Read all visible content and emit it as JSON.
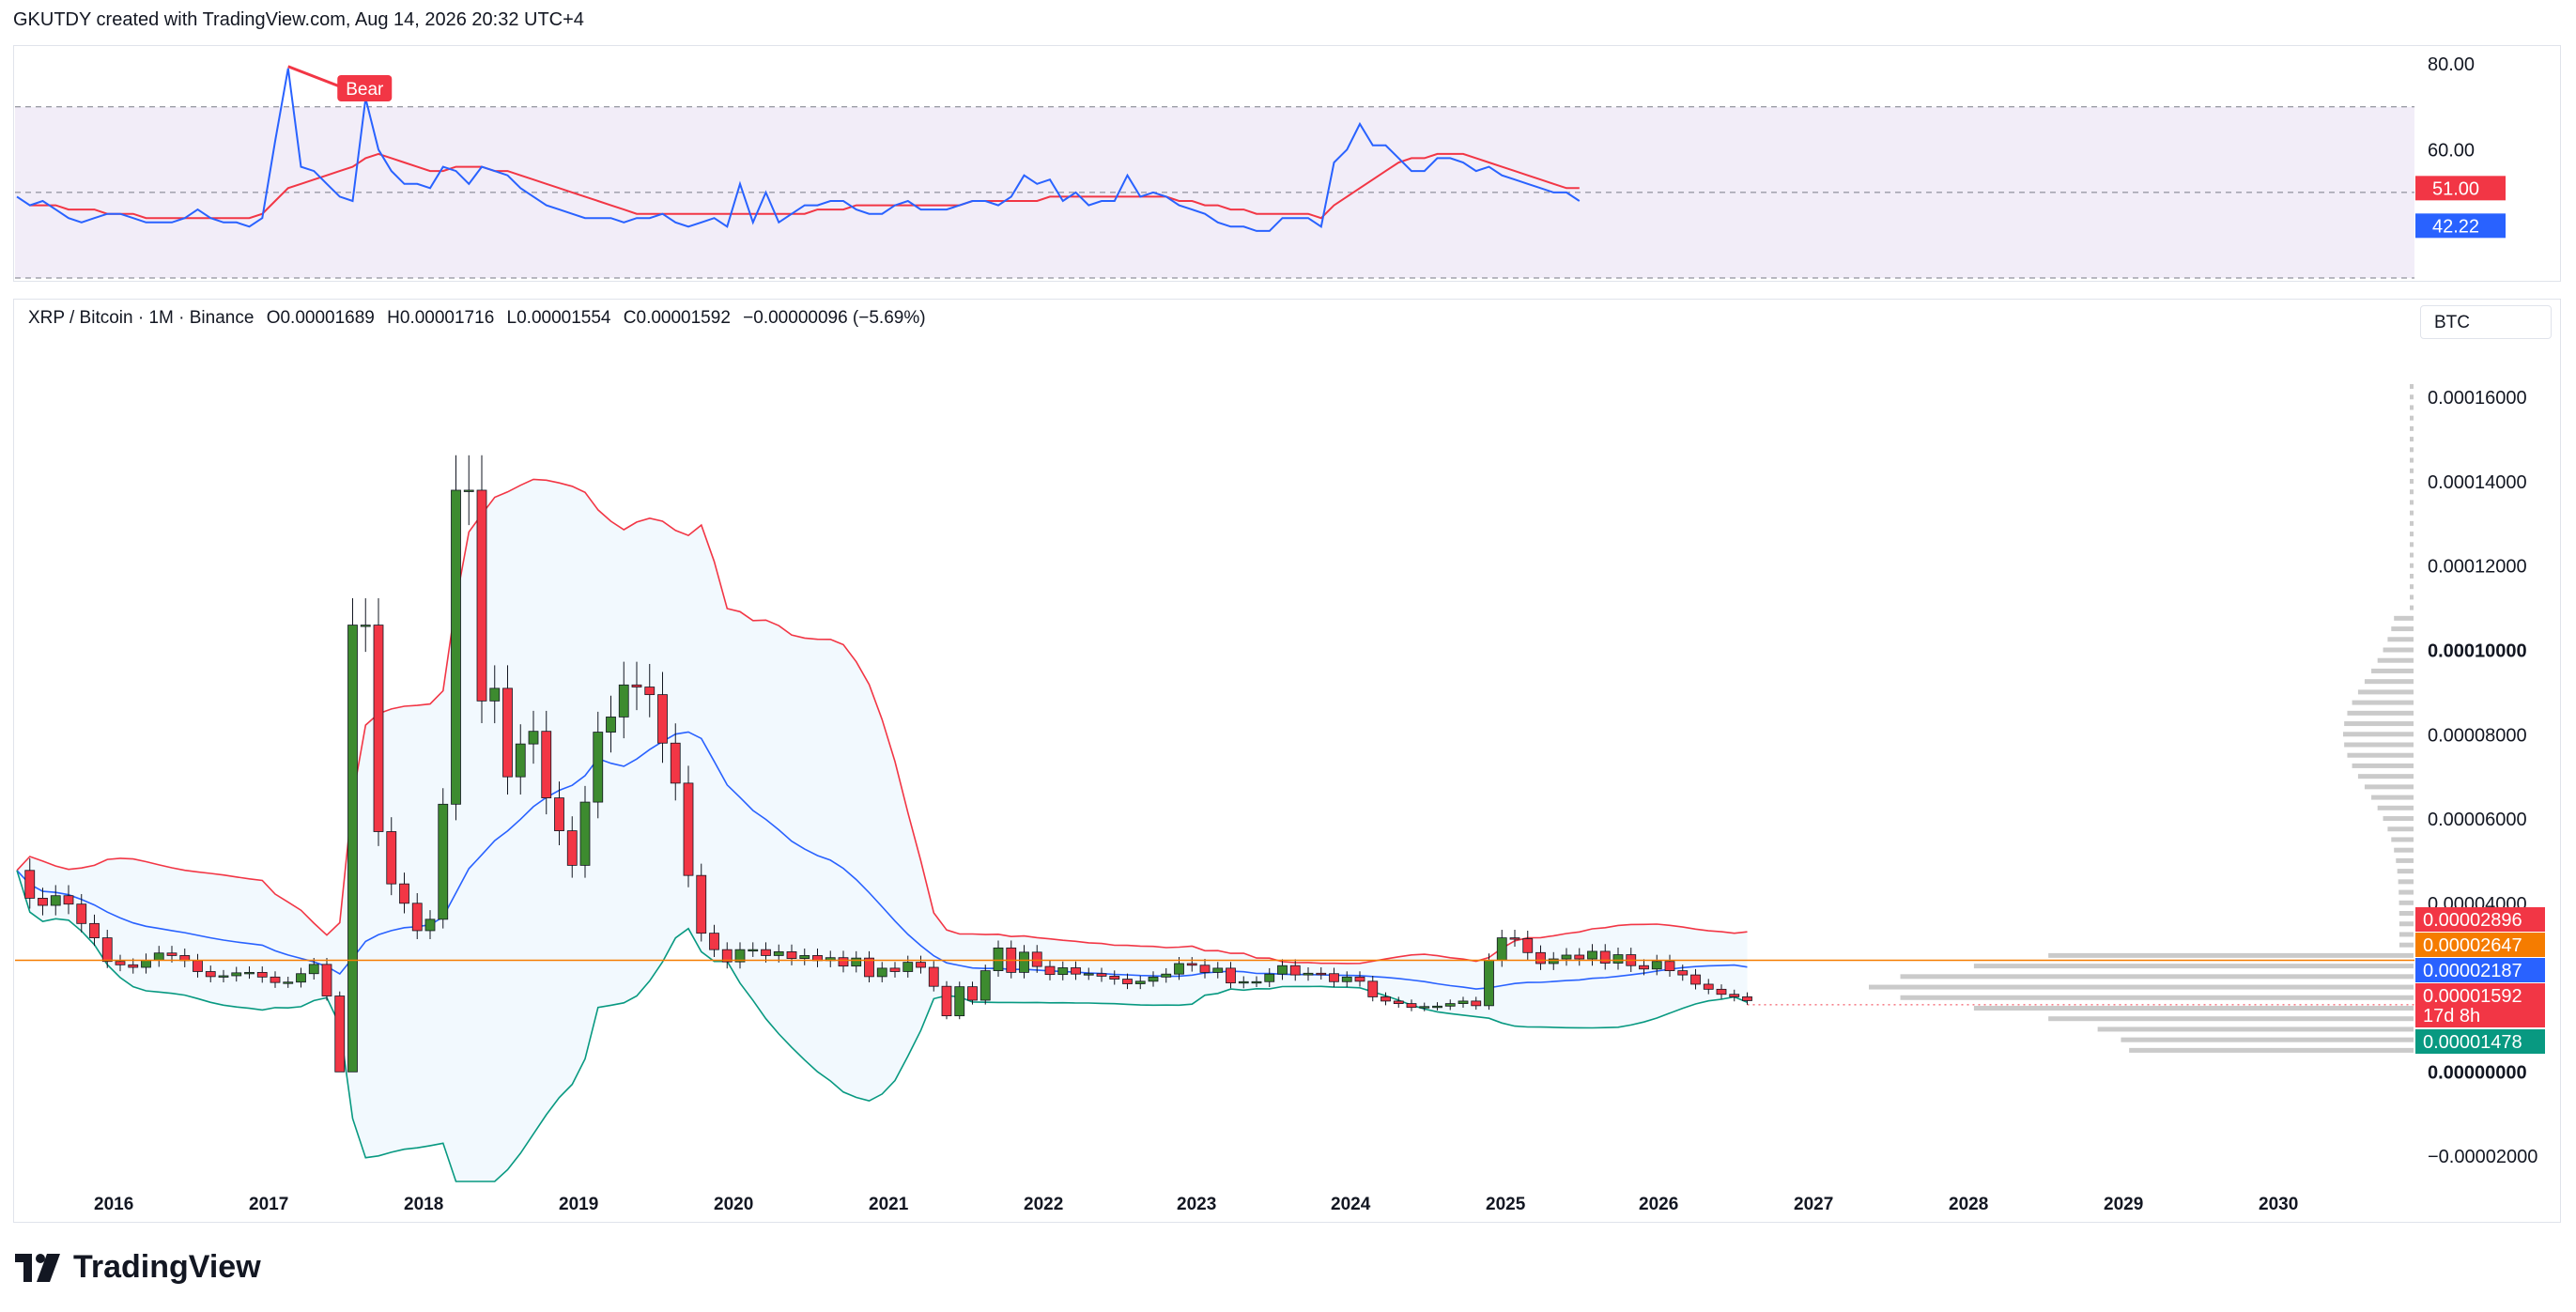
{
  "header": {
    "text": "GKUTDY created with TradingView.com, Aug 14, 2026 20:32 UTC+4"
  },
  "legend": {
    "symbol": "XRP / Bitcoin · 1M · Binance",
    "open": "O0.00001689",
    "high": "H0.00001716",
    "low": "L0.00001554",
    "close": "C0.00001592",
    "change": "−0.00000096 (−5.69%)"
  },
  "unit_label": "BTC",
  "brand": "TradingView",
  "colors": {
    "up": "#3d8b2f",
    "down": "#f23645",
    "basis": "#2962ff",
    "upper": "#f23645",
    "lower": "#089981",
    "rsi": "#2962ff",
    "rsi_ma": "#f23645",
    "highlight": "#f57c00"
  },
  "chart_data": [
    {
      "type": "line",
      "panel": "RSI",
      "title": "",
      "ylim": [
        30,
        84
      ],
      "yticks": [
        "80.00",
        "60.00"
      ],
      "overbought": 70,
      "oversold": 30,
      "mid": 50,
      "x_start": "2015-06",
      "interval": "1M",
      "series": [
        {
          "name": "",
          "color": "#2962ff",
          "values": [
            49,
            47,
            48,
            46,
            44,
            43,
            44,
            45,
            45,
            44,
            43,
            43,
            43,
            44,
            46,
            44,
            43,
            43,
            42,
            44,
            62,
            79,
            56,
            55,
            52,
            49,
            48,
            72,
            60,
            55,
            52,
            52,
            51,
            56,
            55,
            52,
            56,
            55,
            54,
            51,
            49,
            47,
            46,
            45,
            44,
            44,
            44,
            43,
            44,
            44,
            45,
            43,
            42,
            43,
            44,
            42,
            52,
            43,
            50,
            43,
            45,
            47,
            47,
            48,
            48,
            46,
            45,
            45,
            47,
            48,
            46,
            46,
            46,
            47,
            48,
            48,
            47,
            49,
            54,
            52,
            53,
            48,
            50,
            47,
            48,
            48,
            54,
            49,
            50,
            49,
            47,
            46,
            45,
            43,
            42,
            42,
            41,
            41,
            44,
            44,
            44,
            42,
            57,
            60,
            66,
            61,
            61,
            58,
            55,
            55,
            58,
            58,
            57,
            55,
            56,
            54,
            53,
            52,
            51,
            50,
            50,
            48
          ]
        },
        {
          "name": "",
          "color": "#f23645",
          "values": [
            null,
            null,
            null,
            null,
            null,
            null,
            null,
            null,
            null,
            null,
            null,
            null,
            null,
            null,
            null,
            null,
            null,
            null,
            null,
            null,
            null,
            null,
            null,
            null,
            null,
            null,
            null,
            null,
            null,
            null,
            null,
            null,
            null,
            null,
            null,
            null,
            null,
            null,
            null,
            null,
            null,
            null,
            null,
            null,
            null,
            null,
            null,
            null,
            null,
            null,
            null,
            null,
            null,
            null,
            null,
            null,
            null,
            null,
            null,
            null,
            null,
            null,
            null,
            null,
            null,
            null,
            null,
            null,
            null,
            null,
            null,
            null,
            null,
            null,
            null,
            null,
            null,
            null,
            null,
            null,
            null,
            null,
            null,
            null,
            null,
            null,
            null,
            null,
            null,
            null,
            null,
            null,
            null,
            null,
            null,
            null,
            null,
            null,
            null,
            null,
            null,
            null,
            null,
            null,
            null,
            null,
            null,
            null,
            null,
            null,
            null,
            null,
            null,
            null,
            null,
            null,
            null,
            null,
            null,
            null,
            null
          ]
        },
        {
          "name": "",
          "color": "#f23645",
          "values": [
            null,
            47,
            47,
            47,
            46,
            46,
            46,
            45,
            45,
            45,
            44,
            44,
            44,
            44,
            44,
            44,
            44,
            44,
            44,
            45,
            48,
            51,
            52,
            53,
            54,
            55,
            56,
            58,
            59,
            58,
            57,
            56,
            55,
            55,
            56,
            56,
            56,
            55,
            55,
            54,
            53,
            52,
            51,
            50,
            49,
            48,
            47,
            46,
            45,
            45,
            45,
            45,
            45,
            45,
            45,
            45,
            45,
            45,
            45,
            45,
            45,
            45,
            46,
            46,
            46,
            47,
            47,
            47,
            47,
            47,
            47,
            47,
            47,
            47,
            48,
            48,
            48,
            48,
            48,
            48,
            49,
            49,
            49,
            49,
            49,
            49,
            49,
            49,
            49,
            49,
            48,
            48,
            47,
            47,
            46,
            46,
            45,
            45,
            45,
            45,
            45,
            44,
            47,
            49,
            51,
            53,
            55,
            57,
            58,
            58,
            59,
            59,
            59,
            58,
            57,
            56,
            55,
            54,
            53,
            52,
            51,
            51
          ]
        }
      ],
      "annotations": [
        {
          "text": "Bear"
        }
      ],
      "last_labels": [
        "51.00",
        "42.22"
      ]
    },
    {
      "type": "candlestick",
      "panel": "price",
      "ylim": [
        -2.6e-05,
        0.000183
      ],
      "yticks": [
        "0.00016000",
        "0.00014000",
        "0.00012000",
        "0.00010000",
        "0.00008000",
        "0.00006000",
        "0.00004000",
        "0.00000000",
        "−0.00002000"
      ],
      "xticks": [
        "2016",
        "2017",
        "2018",
        "2019",
        "2020",
        "2021",
        "2022",
        "2023",
        "2024",
        "2025",
        "2026",
        "2027",
        "2028",
        "2029",
        "2030"
      ],
      "x_start": "2015-06",
      "interval": "1M",
      "candles": [
        [
          4.78e-05,
          4.12e-05,
          3.95e-05,
          4.18e-05,
          3.98e-05,
          3.52e-05,
          3.18e-05,
          2.62e-05,
          2.54e-05,
          2.48e-05,
          2.65e-05,
          2.82e-05,
          2.76e-05,
          2.64e-05,
          2.38e-05,
          2.26e-05,
          2.28e-05,
          2.35e-05,
          2.36e-05,
          2.25e-05,
          2.12e-05,
          2.13e-05,
          2.33e-05,
          2.55e-05,
          1.8e-05,
          0.0,
          0.000106,
          0.000106,
          5.7e-05,
          4.46e-05,
          4e-05,
          3.35e-05,
          3.62e-05,
          6.35e-05,
          0.000138,
          0.000138,
          8.8e-05,
          9.1e-05,
          7e-05,
          7.78e-05,
          8.08e-05,
          6.5e-05,
          5.72e-05,
          4.9e-05,
          6.4e-05,
          8.06e-05,
          8.42e-05,
          9.18e-05,
          9.13e-05,
          8.95e-05,
          7.8e-05,
          6.85e-05,
          4.66e-05,
          3.29e-05,
          2.9e-05,
          2.61e-05,
          2.9e-05,
          2.9e-05,
          2.76e-05,
          2.85e-05,
          2.69e-05,
          2.76e-05,
          2.64e-05,
          2.71e-05,
          2.51e-05,
          2.7e-05,
          2.26e-05,
          2.46e-05,
          2.38e-05,
          2.6e-05,
          2.48e-05,
          2.03e-05,
          1.33e-05,
          2.02e-05,
          1.7e-05,
          2.4e-05,
          2.94e-05,
          2.36e-05,
          2.84e-05,
          2.5e-05,
          2.31e-05,
          2.47e-05,
          2.32e-05,
          2.33e-05,
          2.27e-05,
          2.2e-05,
          2.09e-05,
          2.15e-05,
          2.25e-05,
          2.32e-05,
          2.57e-05,
          2.53e-05,
          2.36e-05,
          2.46e-05,
          2.11e-05,
          2.14e-05,
          2.14e-05,
          2.32e-05,
          2.52e-05,
          2.3e-05,
          2.34e-05,
          2.33e-05,
          2.14e-05,
          2.25e-05,
          2.15e-05,
          1.78e-05,
          1.68e-05,
          1.62e-05,
          1.53e-05,
          1.55e-05,
          1.56e-05,
          1.62e-05,
          1.68e-05,
          1.57e-05,
          2.65e-05,
          3.18e-05,
          3.16e-05,
          2.83e-05,
          2.57e-05,
          2.68e-05,
          2.77e-05,
          2.68e-05,
          2.86e-05,
          2.58e-05,
          2.78e-05,
          2.52e-05,
          2.44e-05,
          2.62e-05,
          2.4e-05,
          2.3e-05,
          2.08e-05,
          1.96e-05,
          1.84e-05,
          1.78e-05,
          1.69e-05
        ]
      ],
      "ohlc": [],
      "levels": [
        {
          "label": "0.00002896",
          "value": 2.896e-05,
          "color": "#f23645"
        },
        {
          "label": "0.00002647",
          "value": 2.647e-05,
          "color": "#f57c00"
        },
        {
          "label": "0.00002187",
          "value": 2.187e-05,
          "color": "#2962ff"
        },
        {
          "label": "0.00001592",
          "value": 1.592e-05,
          "color": "#f23645",
          "sub": "17d 8h"
        },
        {
          "label": "0.00001478",
          "value": 1.478e-05,
          "color": "#089981"
        }
      ],
      "volume_profile": "gray horizontal histogram on right side"
    }
  ]
}
